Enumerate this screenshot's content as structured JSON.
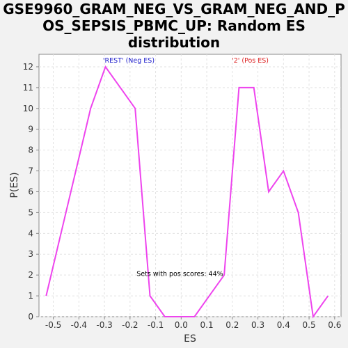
{
  "title_lines": [
    "GSE9960_GRAM_NEG_VS_GRAM_NEG_AND_P",
    "OS_SEPSIS_PBMC_UP: Random ES",
    "distribution"
  ],
  "chart_data": {
    "type": "line",
    "xlabel": "ES",
    "ylabel": "P(ES)",
    "xlim": [
      -0.556,
      0.625
    ],
    "ylim": [
      0,
      12.6
    ],
    "x_ticks": [
      -0.5,
      -0.4,
      -0.3,
      -0.2,
      -0.1,
      0.0,
      0.1,
      0.2,
      0.3,
      0.4,
      0.5,
      0.6
    ],
    "x_tick_labels": [
      "-0.5",
      "-0.4",
      "-0.3",
      "-0.2",
      "-0.1",
      "0.0",
      "0.1",
      "0.2",
      "0.3",
      "0.4",
      "0.5",
      "0.6"
    ],
    "y_ticks": [
      0,
      1,
      2,
      3,
      4,
      5,
      6,
      7,
      8,
      9,
      10,
      11,
      12
    ],
    "grid": true,
    "series": [
      {
        "color": "#ee44ee",
        "x": [
          -0.528,
          -0.47,
          -0.412,
          -0.354,
          -0.296,
          -0.238,
          -0.18,
          -0.122,
          -0.064,
          -0.006,
          0.052,
          0.11,
          0.168,
          0.226,
          0.284,
          0.342,
          0.4,
          0.458,
          0.516,
          0.574
        ],
        "y": [
          1,
          4,
          7,
          10,
          12,
          11,
          10,
          1,
          0,
          0,
          0,
          1,
          2,
          11,
          11,
          6,
          7,
          5,
          0,
          1
        ]
      }
    ],
    "annotations": [
      {
        "text": "'REST' (Neg ES)",
        "color": "#2222cc",
        "x": -0.205,
        "y": 12.2
      },
      {
        "text": "'2' (Pos ES)",
        "color": "#dd2222",
        "x": 0.27,
        "y": 12.2
      },
      {
        "text": "Sets with pos scores: 44%",
        "color": "#000000",
        "x": -0.005,
        "y": 1.95
      }
    ]
  }
}
